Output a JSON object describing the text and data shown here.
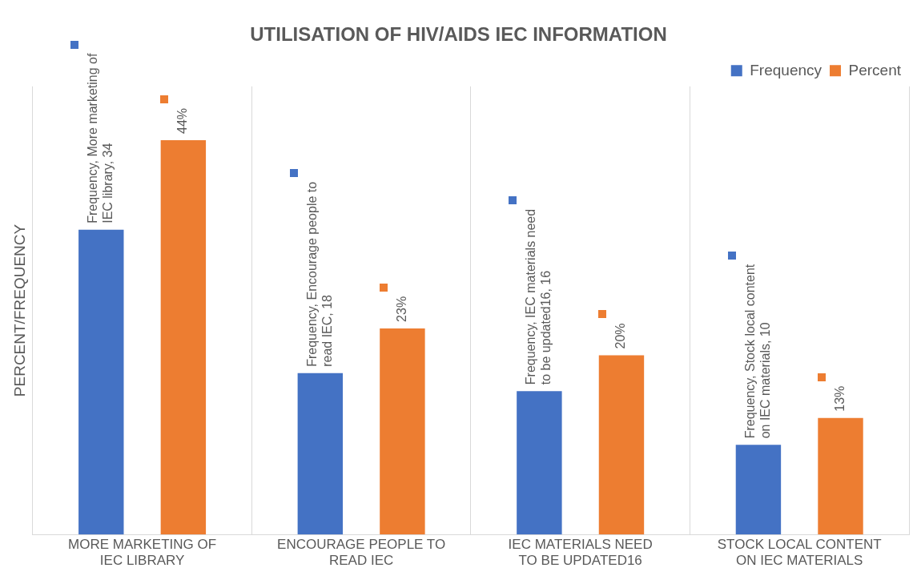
{
  "chart_data": {
    "type": "bar",
    "title": "UTILISATION OF HIV/AIDS IEC INFORMATION",
    "ylabel": "PERCENT/FREQUENCY",
    "categories": [
      "MORE MARKETING OF IEC LIBRARY",
      "ENCOURAGE PEOPLE TO READ IEC",
      "IEC MATERIALS NEED TO BE UPDATED16",
      "STOCK LOCAL CONTENT ON IEC MATERIALS"
    ],
    "series": [
      {
        "name": "Frequency",
        "color": "#4472c4",
        "values": [
          34,
          18,
          16,
          10
        ],
        "value_labels": [
          "Frequency, More marketing of IEC library, 34",
          "Frequency, Encourage people to read IEC, 18",
          "Frequency, IEC materials need to be updated16, 16",
          "Frequency, Stock local content on IEC materials, 10"
        ]
      },
      {
        "name": "Percent",
        "color": "#ed7d31",
        "values": [
          44,
          23,
          20,
          13
        ],
        "value_labels": [
          "44%",
          "23%",
          "20%",
          "13%"
        ]
      }
    ],
    "ylim": [
      0,
      50
    ],
    "tick_labels": "x",
    "grid": "x",
    "legend": "top right"
  }
}
